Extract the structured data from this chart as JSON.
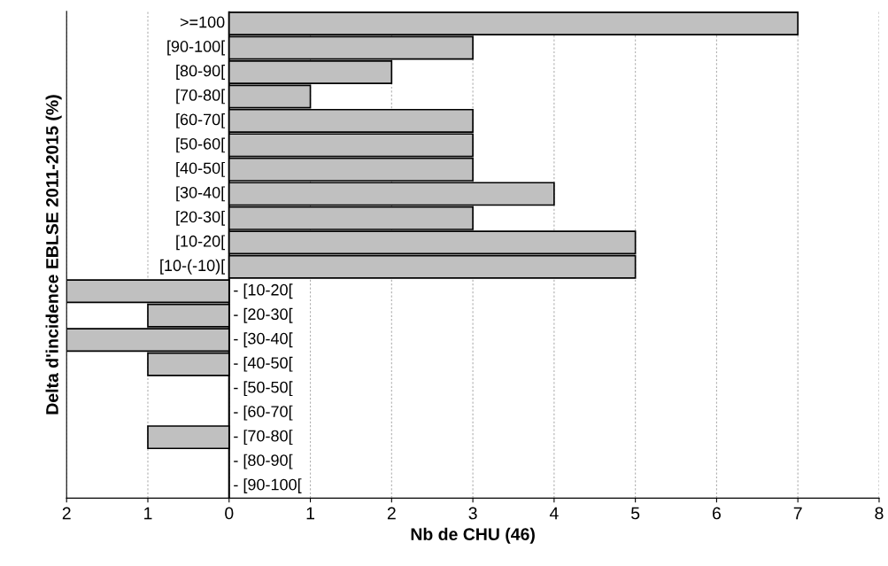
{
  "chart_data": {
    "type": "bar",
    "orientation": "horizontal",
    "xlabel": "Nb de CHU (46)",
    "ylabel": "Delta d'incidence EBLSE 2011-2015 (%)",
    "categories": [
      ">=100",
      "[90-100[",
      "[80-90[",
      "[70-80[",
      "[60-70[",
      "[50-60[",
      "[40-50[",
      "[30-40[",
      "[20-30[",
      "[10-20[",
      "[10-(-10)[",
      "- [10-20[",
      "- [20-30[",
      "- [30-40[",
      "- [40-50[",
      "- [50-50[",
      "- [60-70[",
      "- [70-80[",
      "- [80-90[",
      "- [90-100["
    ],
    "values": [
      7,
      3,
      2,
      1,
      3,
      3,
      3,
      4,
      3,
      5,
      5,
      -2,
      -1,
      -2,
      -1,
      0,
      0,
      -1,
      0,
      0
    ],
    "color": "#c0c0c0",
    "xlim": [
      -2,
      8
    ],
    "xticks": [
      {
        "value": -2,
        "label": "2"
      },
      {
        "value": -1,
        "label": "1"
      },
      0,
      1,
      2,
      3,
      4,
      5,
      6,
      7,
      8
    ],
    "grid": "x"
  }
}
